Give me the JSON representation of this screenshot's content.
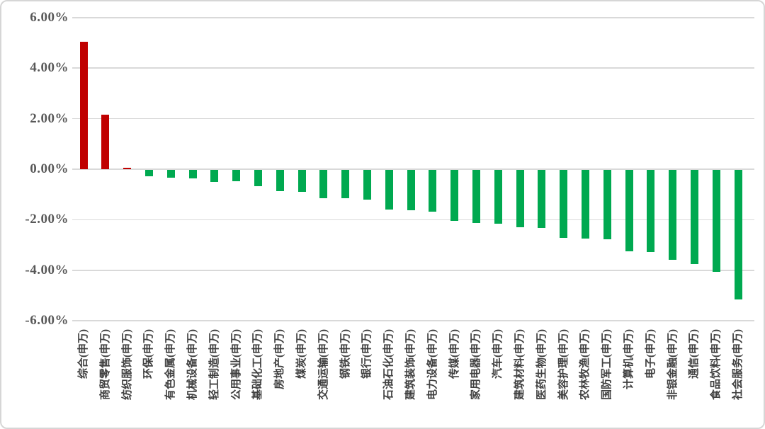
{
  "chart_data": {
    "type": "bar",
    "title": "",
    "xlabel": "",
    "ylabel": "",
    "categories": [
      "综合(申万)",
      "商贸零售(申万)",
      "纺织服饰(申万)",
      "环保(申万)",
      "有色金属(申万)",
      "机械设备(申万)",
      "轻工制造(申万)",
      "公用事业(申万)",
      "基础化工(申万)",
      "房地产(申万)",
      "煤炭(申万)",
      "交通运输(申万)",
      "钢铁(申万)",
      "银行(申万)",
      "石油石化(申万)",
      "建筑装饰(申万)",
      "电力设备(申万)",
      "传媒(申万)",
      "家用电器(申万)",
      "汽车(申万)",
      "建筑材料(申万)",
      "医药生物(申万)",
      "美容护理(申万)",
      "农林牧渔(申万)",
      "国防军工(申万)",
      "计算机(申万)",
      "电子(申万)",
      "非银金融(申万)",
      "通信(申万)",
      "食品饮料(申万)",
      "社会服务(申万)"
    ],
    "values": [
      5.05,
      2.17,
      0.07,
      -0.24,
      -0.32,
      -0.34,
      -0.48,
      -0.46,
      -0.65,
      -0.84,
      -0.88,
      -1.11,
      -1.13,
      -1.17,
      -1.56,
      -1.61,
      -1.65,
      -2.02,
      -2.11,
      -2.14,
      -2.28,
      -2.3,
      -2.69,
      -2.72,
      -2.74,
      -3.23,
      -3.25,
      -3.55,
      -3.72,
      -4.03,
      -5.14
    ],
    "value_unit": "%",
    "yticks": [
      6,
      4,
      2,
      0,
      -2,
      -4,
      -6
    ],
    "ytick_format": "two-decimal-percent",
    "ylim": [
      -6,
      6
    ],
    "grid": "horizontal",
    "legend": "none",
    "colors": {
      "positive": "#c00000",
      "negative": "#00a950",
      "gridline": "#d9d9d9",
      "tick_label": "#595959",
      "category_label": "#404040",
      "frame_border": "#d6d6d6",
      "background": "#ffffff"
    }
  }
}
